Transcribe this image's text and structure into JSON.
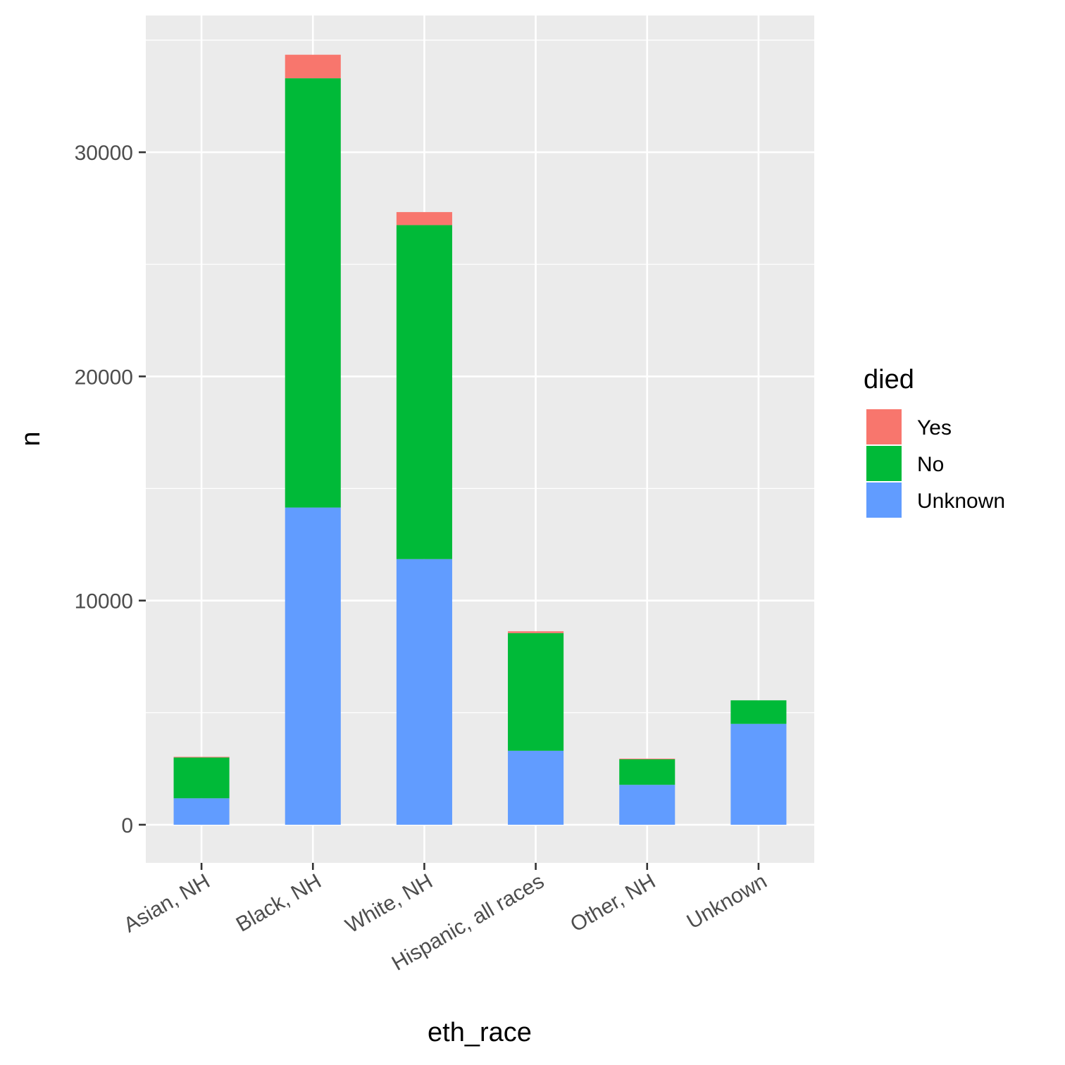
{
  "chart_data": {
    "type": "bar",
    "stacked": true,
    "xlabel": "eth_race",
    "ylabel": "n",
    "categories": [
      "Asian, NH",
      "Black, NH",
      "White, NH",
      "Hispanic, all races",
      "Other, NH",
      "Unknown"
    ],
    "series": [
      {
        "name": "Unknown",
        "color": "#619CFF",
        "values": [
          1180,
          14150,
          11850,
          3300,
          1780,
          4500
        ]
      },
      {
        "name": "No",
        "color": "#00BA38",
        "values": [
          1820,
          19150,
          14900,
          5250,
          1140,
          1050
        ]
      },
      {
        "name": "Yes",
        "color": "#F8766D",
        "values": [
          30,
          1050,
          580,
          80,
          30,
          0
        ]
      }
    ],
    "yticks": [
      0,
      10000,
      20000,
      30000
    ],
    "ylim": [
      -1700,
      36100
    ],
    "grid": true,
    "legend": {
      "title": "died",
      "position": "right",
      "entries": [
        {
          "label": "Yes",
          "color": "#F8766D"
        },
        {
          "label": "No",
          "color": "#00BA38"
        },
        {
          "label": "Unknown",
          "color": "#619CFF"
        }
      ]
    }
  }
}
